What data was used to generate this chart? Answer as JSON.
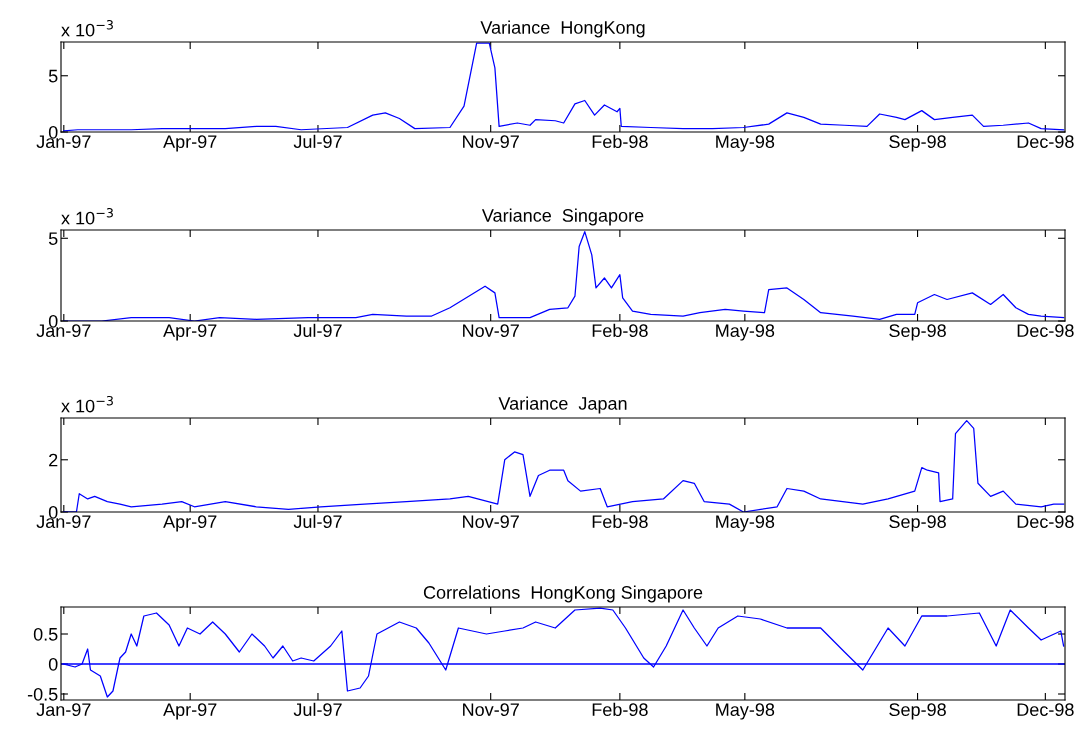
{
  "chart_data": [
    {
      "type": "line",
      "title": "Variance  HongKong",
      "annotations": [
        "x 10$^{−3}$"
      ],
      "xlim": [
        "1996-12-30",
        "1998-12-15"
      ],
      "xticks": [
        {
          "value": "1997-01-01",
          "label": "Jan-97"
        },
        {
          "value": "1997-04-01",
          "label": "Apr-97"
        },
        {
          "value": "1997-07-01",
          "label": "Jul-97"
        },
        {
          "value": "1997-11-01",
          "label": "Nov-97"
        },
        {
          "value": "1998-02-01",
          "label": "Feb-98"
        },
        {
          "value": "1998-05-01",
          "label": "May-98"
        },
        {
          "value": "1998-09-01",
          "label": "Sep-98"
        },
        {
          "value": "1998-12-01",
          "label": "Dec-98"
        }
      ],
      "ylim": [
        0,
        8
      ],
      "yticks": [
        0,
        5
      ],
      "grid": false,
      "legend": false,
      "marker": "none",
      "line_style": "solid",
      "series": [
        {
          "color": "#0000ff",
          "x": [
            "1997-01-01",
            "1997-01-11",
            "1997-01-18",
            "1997-02-18",
            "1997-03-12",
            "1997-04-04",
            "1997-04-26",
            "1997-05-18",
            "1997-06-01",
            "1997-06-19",
            "1997-07-22",
            "1997-08-09",
            "1997-08-18",
            "1997-08-28",
            "1997-09-08",
            "1997-10-03",
            "1997-10-13",
            "1997-10-22",
            "1997-10-31",
            "1997-11-04",
            "1997-11-07",
            "1997-11-20",
            "1997-11-29",
            "1997-12-03",
            "1997-12-17",
            "1997-12-23",
            "1997-12-31",
            "1998-01-07",
            "1998-01-14",
            "1998-01-21",
            "1998-01-30",
            "1998-02-01",
            "1998-02-02",
            "1998-02-23",
            "1998-03-18",
            "1998-04-08",
            "1998-04-30",
            "1998-05-18",
            "1998-05-31",
            "1998-06-12",
            "1998-06-24",
            "1998-07-11",
            "1998-07-27",
            "1998-08-05",
            "1998-08-17",
            "1998-08-23",
            "1998-09-04",
            "1998-09-13",
            "1998-09-26",
            "1998-10-10",
            "1998-10-18",
            "1998-11-01",
            "1998-11-19",
            "1998-11-28",
            "1998-12-14"
          ],
          "values": [
            0.1,
            0.2,
            0.2,
            0.2,
            0.3,
            0.3,
            0.3,
            0.5,
            0.5,
            0.2,
            0.4,
            1.5,
            1.7,
            1.2,
            0.3,
            0.4,
            2.3,
            7.9,
            7.9,
            5.7,
            0.5,
            0.8,
            0.6,
            1.1,
            1.0,
            0.8,
            2.5,
            2.8,
            1.5,
            2.4,
            1.8,
            2.1,
            0.5,
            0.4,
            0.3,
            0.3,
            0.4,
            0.7,
            1.7,
            1.3,
            0.7,
            0.6,
            0.5,
            1.6,
            1.3,
            1.1,
            1.9,
            1.1,
            1.3,
            1.5,
            0.5,
            0.6,
            0.8,
            0.3,
            0.2
          ]
        }
      ]
    },
    {
      "type": "line",
      "title": "Variance  Singapore",
      "annotations": [
        "x 10$^{−3}$"
      ],
      "xlim": [
        "1996-12-30",
        "1998-12-15"
      ],
      "xticks": [
        {
          "value": "1997-01-01",
          "label": "Jan-97"
        },
        {
          "value": "1997-04-01",
          "label": "Apr-97"
        },
        {
          "value": "1997-07-01",
          "label": "Jul-97"
        },
        {
          "value": "1997-11-01",
          "label": "Nov-97"
        },
        {
          "value": "1998-02-01",
          "label": "Feb-98"
        },
        {
          "value": "1998-05-01",
          "label": "May-98"
        },
        {
          "value": "1998-09-01",
          "label": "Sep-98"
        },
        {
          "value": "1998-12-01",
          "label": "Dec-98"
        }
      ],
      "ylim": [
        0,
        5.5
      ],
      "yticks": [
        0,
        5
      ],
      "grid": false,
      "legend": false,
      "marker": "none",
      "line_style": "solid",
      "series": [
        {
          "color": "#0000ff",
          "x": [
            "1997-01-01",
            "1997-01-28",
            "1997-02-18",
            "1997-03-17",
            "1997-04-04",
            "1997-04-22",
            "1997-05-18",
            "1997-06-24",
            "1997-07-28",
            "1997-08-09",
            "1997-09-02",
            "1997-09-20",
            "1997-10-03",
            "1997-10-28",
            "1997-11-04",
            "1997-11-07",
            "1997-11-29",
            "1997-12-13",
            "1997-12-26",
            "1997-12-31",
            "1998-01-03",
            "1998-01-07",
            "1998-01-12",
            "1998-01-15",
            "1998-01-21",
            "1998-01-26",
            "1998-02-01",
            "1998-02-03",
            "1998-02-10",
            "1998-02-23",
            "1998-03-18",
            "1998-03-30",
            "1998-04-17",
            "1998-04-30",
            "1998-05-15",
            "1998-05-18",
            "1998-05-31",
            "1998-06-12",
            "1998-06-24",
            "1998-07-17",
            "1998-08-05",
            "1998-08-17",
            "1998-08-30",
            "1998-09-01",
            "1998-09-13",
            "1998-09-22",
            "1998-10-10",
            "1998-10-23",
            "1998-11-01",
            "1998-11-10",
            "1998-11-19",
            "1998-11-28",
            "1998-12-14"
          ],
          "values": [
            0,
            0,
            0.2,
            0.2,
            0,
            0.2,
            0.1,
            0.2,
            0.2,
            0.4,
            0.3,
            0.3,
            0.8,
            2.1,
            1.7,
            0.2,
            0.2,
            0.7,
            0.8,
            1.5,
            4.5,
            5.4,
            4.0,
            2.0,
            2.6,
            2.0,
            2.8,
            1.4,
            0.6,
            0.4,
            0.3,
            0.5,
            0.7,
            0.6,
            0.5,
            1.9,
            2.0,
            1.3,
            0.5,
            0.3,
            0.1,
            0.4,
            0.4,
            1.1,
            1.6,
            1.3,
            1.7,
            1.0,
            1.6,
            0.8,
            0.4,
            0.3,
            0.2
          ]
        }
      ]
    },
    {
      "type": "line",
      "title": "Variance  Japan",
      "annotations": [
        "x 10$^{−3}$"
      ],
      "xlim": [
        "1996-12-30",
        "1998-12-15"
      ],
      "xticks": [
        {
          "value": "1997-01-01",
          "label": "Jan-97"
        },
        {
          "value": "1997-04-01",
          "label": "Apr-97"
        },
        {
          "value": "1997-07-01",
          "label": "Jul-97"
        },
        {
          "value": "1997-11-01",
          "label": "Nov-97"
        },
        {
          "value": "1998-02-01",
          "label": "Feb-98"
        },
        {
          "value": "1998-05-01",
          "label": "May-98"
        },
        {
          "value": "1998-09-01",
          "label": "Sep-98"
        },
        {
          "value": "1998-12-01",
          "label": "Dec-98"
        }
      ],
      "ylim": [
        0,
        3.6
      ],
      "yticks": [
        0,
        2
      ],
      "grid": false,
      "legend": false,
      "marker": "none",
      "line_style": "solid",
      "series": [
        {
          "color": "#0000ff",
          "x": [
            "1997-01-01",
            "1997-01-10",
            "1997-01-12",
            "1997-01-18",
            "1997-01-23",
            "1997-02-01",
            "1997-02-10",
            "1997-02-18",
            "1997-03-12",
            "1997-03-26",
            "1997-04-04",
            "1997-04-26",
            "1997-05-18",
            "1997-06-10",
            "1997-07-03",
            "1997-08-03",
            "1997-09-02",
            "1997-10-03",
            "1997-10-16",
            "1997-11-06",
            "1997-11-11",
            "1997-11-18",
            "1997-11-24",
            "1997-11-29",
            "1997-12-05",
            "1997-12-13",
            "1997-12-23",
            "1997-12-26",
            "1998-01-04",
            "1998-01-18",
            "1998-01-23",
            "1998-02-10",
            "1998-03-04",
            "1998-03-18",
            "1998-03-26",
            "1998-04-02",
            "1998-04-20",
            "1998-04-30",
            "1998-05-24",
            "1998-05-31",
            "1998-06-12",
            "1998-06-24",
            "1998-07-24",
            "1998-08-11",
            "1998-08-30",
            "1998-09-04",
            "1998-09-08",
            "1998-09-16",
            "1998-09-17",
            "1998-09-26",
            "1998-09-28",
            "1998-10-06",
            "1998-10-11",
            "1998-10-14",
            "1998-10-23",
            "1998-11-01",
            "1998-11-10",
            "1998-11-28",
            "1998-12-07",
            "1998-12-14"
          ],
          "values": [
            0,
            0,
            0.7,
            0.5,
            0.6,
            0.4,
            0.3,
            0.2,
            0.3,
            0.4,
            0.2,
            0.4,
            0.2,
            0.1,
            0.2,
            0.3,
            0.4,
            0.5,
            0.6,
            0.3,
            2.0,
            2.3,
            2.2,
            0.6,
            1.4,
            1.6,
            1.6,
            1.2,
            0.8,
            0.9,
            0.2,
            0.4,
            0.5,
            1.2,
            1.1,
            0.4,
            0.3,
            0,
            0.2,
            0.9,
            0.8,
            0.5,
            0.3,
            0.5,
            0.8,
            1.7,
            1.6,
            1.5,
            0.4,
            0.5,
            3.0,
            3.5,
            3.2,
            1.1,
            0.6,
            0.8,
            0.3,
            0.2,
            0.3,
            0.3
          ]
        }
      ]
    },
    {
      "type": "line",
      "title": "Correlations  HongKong Singapore",
      "xlim": [
        "1996-12-30",
        "1998-12-15"
      ],
      "xticks": [
        {
          "value": "1997-01-01",
          "label": "Jan-97"
        },
        {
          "value": "1997-04-01",
          "label": "Apr-97"
        },
        {
          "value": "1997-07-01",
          "label": "Jul-97"
        },
        {
          "value": "1997-11-01",
          "label": "Nov-97"
        },
        {
          "value": "1998-02-01",
          "label": "Feb-98"
        },
        {
          "value": "1998-05-01",
          "label": "May-98"
        },
        {
          "value": "1998-09-01",
          "label": "Sep-98"
        },
        {
          "value": "1998-12-01",
          "label": "Dec-98"
        }
      ],
      "ylim": [
        -0.6,
        0.95
      ],
      "yticks": [
        -0.5,
        0,
        0.5
      ],
      "grid": false,
      "legend": false,
      "marker": "none",
      "line_style": "solid",
      "ref_lines": [
        {
          "axis": "y",
          "value": 0,
          "color": "#0000ff",
          "line_style": "solid"
        }
      ],
      "series": [
        {
          "color": "#0000ff",
          "x": [
            "1997-01-01",
            "1997-01-09",
            "1997-01-14",
            "1997-01-18",
            "1997-01-20",
            "1997-01-27",
            "1997-02-01",
            "1997-02-05",
            "1997-02-10",
            "1997-02-14",
            "1997-02-18",
            "1997-02-22",
            "1997-02-27",
            "1997-03-08",
            "1997-03-17",
            "1997-03-24",
            "1997-03-30",
            "1997-04-08",
            "1997-04-17",
            "1997-04-26",
            "1997-05-06",
            "1997-05-15",
            "1997-05-24",
            "1997-05-30",
            "1997-06-06",
            "1997-06-13",
            "1997-06-19",
            "1997-06-28",
            "1997-07-10",
            "1997-07-18",
            "1997-07-22",
            "1997-07-31",
            "1997-08-06",
            "1997-08-12",
            "1997-08-28",
            "1997-09-09",
            "1997-09-18",
            "1997-09-30",
            "1997-10-09",
            "1997-10-29",
            "1997-11-11",
            "1997-11-24",
            "1997-12-03",
            "1997-12-17",
            "1997-12-31",
            "1998-01-18",
            "1998-01-27",
            "1998-02-05",
            "1998-02-18",
            "1998-02-25",
            "1998-03-06",
            "1998-03-18",
            "1998-03-26",
            "1998-04-04",
            "1998-04-12",
            "1998-04-26",
            "1998-05-12",
            "1998-05-31",
            "1998-06-24",
            "1998-07-11",
            "1998-07-24",
            "1998-08-11",
            "1998-08-23",
            "1998-09-04",
            "1998-09-22",
            "1998-10-15",
            "1998-10-27",
            "1998-11-06",
            "1998-11-19",
            "1998-11-28",
            "1998-12-12",
            "1998-12-14"
          ],
          "values": [
            0,
            -0.05,
            0.0,
            0.25,
            -0.1,
            -0.2,
            -0.55,
            -0.45,
            0.1,
            0.2,
            0.5,
            0.3,
            0.8,
            0.85,
            0.65,
            0.3,
            0.6,
            0.5,
            0.7,
            0.5,
            0.2,
            0.5,
            0.3,
            0.1,
            0.3,
            0.05,
            0.1,
            0.05,
            0.3,
            0.55,
            -0.45,
            -0.4,
            -0.2,
            0.5,
            0.7,
            0.6,
            0.35,
            -0.1,
            0.6,
            0.5,
            0.55,
            0.6,
            0.7,
            0.6,
            0.9,
            0.93,
            0.9,
            0.6,
            0.1,
            -0.05,
            0.3,
            0.9,
            0.6,
            0.3,
            0.6,
            0.8,
            0.75,
            0.6,
            0.6,
            0.2,
            -0.1,
            0.6,
            0.3,
            0.8,
            0.8,
            0.85,
            0.3,
            0.9,
            0.6,
            0.4,
            0.55,
            0.3
          ]
        }
      ]
    }
  ]
}
